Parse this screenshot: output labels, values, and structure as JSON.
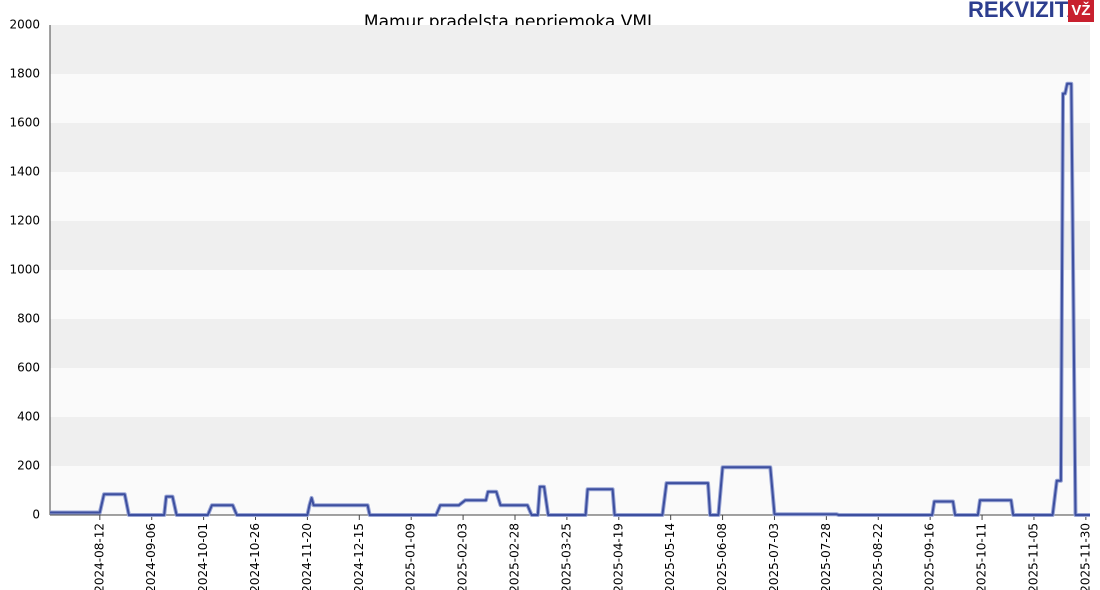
{
  "chart_data": {
    "type": "line",
    "title": "Mamur pradelsta nepriemoka VMI",
    "logo": "REKVIZITAI",
    "logo_badge": "VŽ",
    "x": [
      "2024-07-19",
      "2024-08-12",
      "2024-08-14",
      "2024-08-24",
      "2024-08-26",
      "2024-09-12",
      "2024-09-13",
      "2024-09-16",
      "2024-09-18",
      "2024-10-03",
      "2024-10-05",
      "2024-10-15",
      "2024-10-17",
      "2024-11-20",
      "2024-11-21",
      "2024-11-22",
      "2024-11-23",
      "2024-12-19",
      "2024-12-20",
      "2025-01-21",
      "2025-01-23",
      "2025-02-01",
      "2025-02-04",
      "2025-02-14",
      "2025-02-15",
      "2025-02-19",
      "2025-02-21",
      "2025-03-06",
      "2025-03-08",
      "2025-03-11",
      "2025-03-12",
      "2025-03-14",
      "2025-03-16",
      "2025-04-03",
      "2025-04-04",
      "2025-04-16",
      "2025-04-17",
      "2025-05-10",
      "2025-05-12",
      "2025-06-01",
      "2025-06-02",
      "2025-06-06",
      "2025-06-08",
      "2025-07-01",
      "2025-07-03",
      "2025-08-02",
      "2025-08-03",
      "2025-09-17",
      "2025-09-18",
      "2025-09-27",
      "2025-09-28",
      "2025-10-09",
      "2025-10-10",
      "2025-10-25",
      "2025-10-26",
      "2025-11-14",
      "2025-11-16",
      "2025-11-18",
      "2025-11-19",
      "2025-11-20",
      "2025-11-21",
      "2025-11-23",
      "2025-11-25",
      "2025-12-02"
    ],
    "values": [
      10,
      10,
      85,
      85,
      0,
      0,
      75,
      75,
      0,
      0,
      40,
      40,
      0,
      0,
      40,
      70,
      40,
      40,
      0,
      0,
      40,
      40,
      60,
      60,
      95,
      95,
      40,
      40,
      0,
      0,
      115,
      115,
      0,
      0,
      105,
      105,
      0,
      0,
      130,
      130,
      0,
      0,
      195,
      195,
      3,
      3,
      0,
      0,
      55,
      55,
      0,
      0,
      60,
      60,
      0,
      0,
      140,
      140,
      1720,
      1720,
      1760,
      1760,
      0,
      0
    ],
    "color": "#3d4f9f",
    "xlim": [
      "2024-07-19",
      "2025-12-02"
    ],
    "xticks": [
      "2024-08-12",
      "2024-09-06",
      "2024-10-01",
      "2024-10-26",
      "2024-11-20",
      "2024-12-15",
      "2025-01-09",
      "2025-02-03",
      "2025-02-28",
      "2025-03-25",
      "2025-04-19",
      "2025-05-14",
      "2025-06-08",
      "2025-07-03",
      "2025-07-28",
      "2025-08-22",
      "2025-09-16",
      "2025-10-11",
      "2025-11-05",
      "2025-11-30"
    ],
    "ylim": [
      0,
      2000
    ],
    "yticks": [
      0,
      200,
      400,
      600,
      800,
      1000,
      1200,
      1400,
      1600,
      1800,
      2000
    ],
    "grid": true
  }
}
